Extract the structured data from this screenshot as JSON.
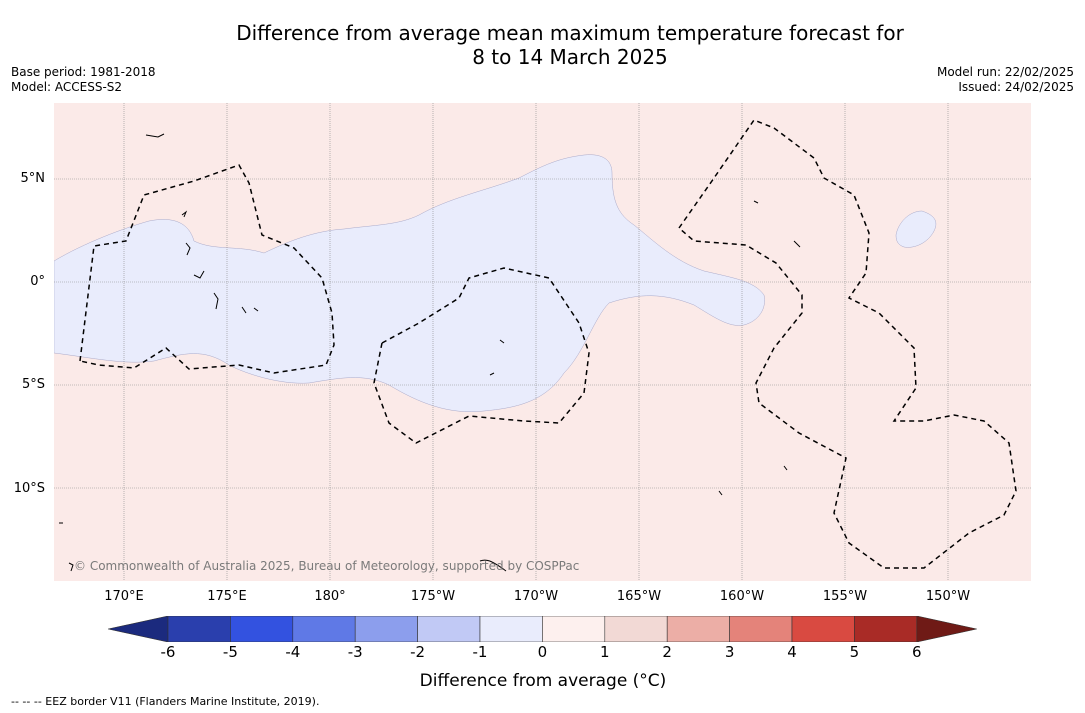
{
  "title_line1": "Difference from average mean maximum temperature forecast for",
  "title_line2": "8 to 14 March 2025",
  "base_period": "Base period: 1981-2018",
  "model": "Model: ACCESS-S2",
  "model_run": "Model run: 22/02/2025",
  "issued": "Issued: 24/02/2025",
  "copyright": "© Commonwealth of Australia 2025, Bureau of Meteorology, supported by COSPPac",
  "lat_labels": [
    "5°N",
    "0°",
    "5°S",
    "10°S"
  ],
  "lon_labels": [
    "170°E",
    "175°E",
    "180°",
    "175°W",
    "170°W",
    "165°W",
    "160°W",
    "155°W",
    "150°W"
  ],
  "colorbar": {
    "label": "Difference from average (°C)",
    "ticks": [
      "-6",
      "-5",
      "-4",
      "-3",
      "-2",
      "-1",
      "0",
      "1",
      "2",
      "3",
      "4",
      "5",
      "6"
    ],
    "colors": [
      "#1b2a7e",
      "#2a3fad",
      "#3352e0",
      "#5f79e6",
      "#8c9eed",
      "#c1c9f5",
      "#e9ecfc",
      "#fdf0ee",
      "#f2d9d5",
      "#ecaea6",
      "#e4837a",
      "#d94a41",
      "#a92b26",
      "#6f1a16"
    ]
  },
  "footnote": "--  --  -- EEZ border V11 (Flanders Marine Institute, 2019)."
}
